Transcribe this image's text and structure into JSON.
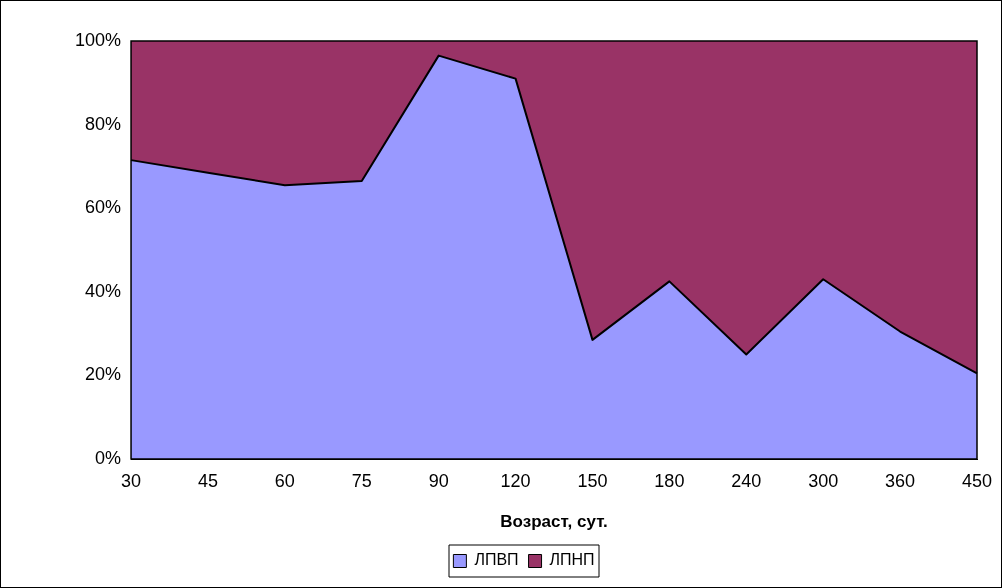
{
  "chart_data": {
    "type": "area",
    "stacked": true,
    "xlabel": "Возраст, сут.",
    "categories": [
      "30",
      "45",
      "60",
      "75",
      "90",
      "120",
      "150",
      "180",
      "240",
      "300",
      "360",
      "450"
    ],
    "series": [
      {
        "name": "ЛПВП",
        "color": "#9999ff",
        "values": [
          71.5,
          68.5,
          65.5,
          66.5,
          96.5,
          91,
          28.5,
          42.5,
          25,
          43,
          30.5,
          20.5
        ]
      },
      {
        "name": "ЛПНП",
        "color": "#993366",
        "values": [
          28.5,
          31.5,
          34.5,
          33.5,
          3.5,
          9,
          71.5,
          57.5,
          75,
          57,
          69.5,
          79.5
        ]
      }
    ],
    "ylim": [
      0,
      100
    ],
    "yticks": [
      {
        "value": 0,
        "label": "0%"
      },
      {
        "value": 20,
        "label": "20%"
      },
      {
        "value": 40,
        "label": "40%"
      },
      {
        "value": 60,
        "label": "60%"
      },
      {
        "value": 80,
        "label": "80%"
      },
      {
        "value": 100,
        "label": "100%"
      }
    ],
    "legend": "bottom"
  }
}
